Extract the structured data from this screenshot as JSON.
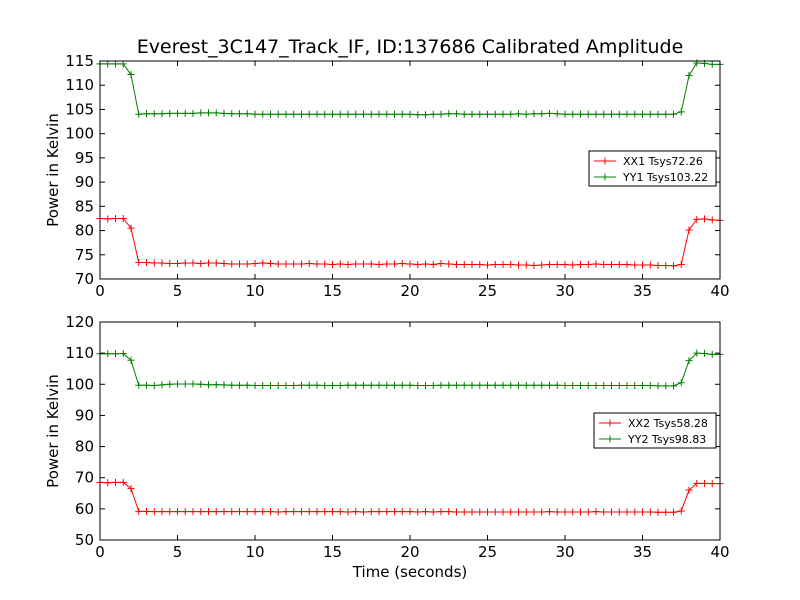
{
  "figure": {
    "title": "Everest_3C147_Track_IF, ID:137686 Calibrated Amplitude"
  },
  "chart_data": [
    {
      "type": "line",
      "title": "Everest_3C147_Track_IF, ID:137686 Calibrated Amplitude",
      "xlabel": "",
      "ylabel": "Power in Kelvin",
      "xlim": [
        0,
        40
      ],
      "ylim": [
        70,
        115
      ],
      "xticks": [
        0,
        5,
        10,
        15,
        20,
        25,
        30,
        35,
        40
      ],
      "yticks": [
        70,
        75,
        80,
        85,
        90,
        95,
        100,
        105,
        110,
        115
      ],
      "grid": false,
      "legend_position": "center-right",
      "marker": "+",
      "sample_interval": 0.5,
      "series": [
        {
          "name": "XX1 Tsys72.26",
          "color": "#ff0000",
          "values": [
            82.5,
            82.4,
            82.5,
            82.5,
            80.5,
            73.4,
            73.4,
            73.3,
            73.3,
            73.2,
            73.2,
            73.3,
            73.3,
            73.2,
            73.3,
            73.3,
            73.2,
            73.1,
            73.1,
            73.1,
            73.2,
            73.3,
            73.2,
            73.1,
            73.1,
            73.1,
            73.1,
            73.2,
            73.1,
            73.1,
            73.0,
            73.1,
            73.0,
            73.1,
            73.1,
            73.1,
            73.0,
            73.1,
            73.1,
            73.2,
            73.1,
            73.0,
            73.1,
            73.0,
            73.2,
            73.1,
            73.0,
            73.0,
            73.0,
            73.0,
            72.9,
            73.0,
            73.0,
            73.0,
            72.9,
            72.9,
            72.8,
            72.9,
            73.0,
            73.0,
            73.0,
            72.9,
            73.0,
            73.0,
            73.1,
            73.0,
            73.0,
            73.0,
            73.0,
            72.9,
            72.9,
            72.9,
            72.8,
            72.8,
            72.7,
            73.0,
            80.1,
            82.3,
            82.4,
            82.2,
            82.1
          ]
        },
        {
          "name": "YY1 Tsys103.22",
          "color": "#008000",
          "values": [
            114.4,
            114.4,
            114.4,
            114.4,
            112.2,
            104.0,
            104.1,
            104.1,
            104.1,
            104.2,
            104.2,
            104.2,
            104.2,
            104.3,
            104.3,
            104.3,
            104.2,
            104.1,
            104.1,
            104.1,
            104.0,
            104.0,
            104.0,
            104.0,
            104.0,
            104.0,
            104.0,
            104.0,
            104.0,
            104.0,
            104.0,
            104.0,
            104.0,
            104.0,
            104.0,
            104.0,
            104.0,
            104.0,
            104.0,
            104.0,
            104.0,
            103.9,
            103.9,
            104.0,
            104.0,
            104.1,
            104.1,
            104.0,
            104.0,
            104.0,
            104.0,
            104.0,
            104.0,
            104.0,
            104.1,
            104.0,
            104.1,
            104.1,
            104.2,
            104.1,
            104.0,
            104.0,
            104.0,
            104.0,
            104.0,
            104.0,
            104.0,
            104.0,
            104.0,
            104.0,
            104.0,
            104.0,
            104.0,
            104.0,
            104.0,
            104.5,
            112.0,
            114.6,
            114.5,
            114.3,
            114.3
          ]
        }
      ]
    },
    {
      "type": "line",
      "title": "",
      "xlabel": "Time (seconds)",
      "ylabel": "Power in Kelvin",
      "xlim": [
        0,
        40
      ],
      "ylim": [
        50,
        120
      ],
      "xticks": [
        0,
        5,
        10,
        15,
        20,
        25,
        30,
        35,
        40
      ],
      "yticks": [
        50,
        60,
        70,
        80,
        90,
        100,
        110,
        120
      ],
      "grid": false,
      "legend_position": "center-right",
      "marker": "+",
      "sample_interval": 0.5,
      "series": [
        {
          "name": "XX2 Tsys58.28",
          "color": "#ff0000",
          "values": [
            68.5,
            68.4,
            68.5,
            68.5,
            66.5,
            59.2,
            59.2,
            59.1,
            59.1,
            59.1,
            59.1,
            59.1,
            59.1,
            59.1,
            59.1,
            59.1,
            59.1,
            59.1,
            59.1,
            59.1,
            59.1,
            59.1,
            59.1,
            59.0,
            59.1,
            59.1,
            59.1,
            59.1,
            59.1,
            59.1,
            59.1,
            59.1,
            59.0,
            59.1,
            59.0,
            59.1,
            59.1,
            59.1,
            59.1,
            59.1,
            59.1,
            59.0,
            59.1,
            59.0,
            59.1,
            59.1,
            59.0,
            59.0,
            59.0,
            59.0,
            59.0,
            59.0,
            59.0,
            59.0,
            59.0,
            59.0,
            59.0,
            59.0,
            59.1,
            59.0,
            59.0,
            59.0,
            59.0,
            59.0,
            59.1,
            59.0,
            59.0,
            59.0,
            59.0,
            59.0,
            59.0,
            59.0,
            58.9,
            58.9,
            58.9,
            59.3,
            66.0,
            68.2,
            68.2,
            68.1,
            68.1
          ]
        },
        {
          "name": "YY2 Tsys98.83",
          "color": "#008000",
          "values": [
            109.8,
            109.8,
            109.8,
            109.9,
            107.7,
            99.7,
            99.7,
            99.6,
            99.8,
            100.0,
            100.1,
            100.1,
            100.1,
            100.0,
            99.8,
            99.9,
            99.8,
            99.7,
            99.7,
            99.7,
            99.6,
            99.6,
            99.6,
            99.6,
            99.6,
            99.6,
            99.7,
            99.7,
            99.7,
            99.6,
            99.6,
            99.6,
            99.7,
            99.7,
            99.7,
            99.7,
            99.7,
            99.7,
            99.7,
            99.7,
            99.7,
            99.6,
            99.6,
            99.6,
            99.7,
            99.7,
            99.7,
            99.7,
            99.7,
            99.7,
            99.7,
            99.7,
            99.7,
            99.7,
            99.7,
            99.7,
            99.7,
            99.7,
            99.7,
            99.7,
            99.6,
            99.6,
            99.6,
            99.6,
            99.6,
            99.6,
            99.6,
            99.6,
            99.6,
            99.6,
            99.6,
            99.6,
            99.5,
            99.5,
            99.5,
            100.5,
            107.6,
            110.0,
            109.9,
            109.6,
            109.6
          ]
        }
      ]
    }
  ]
}
